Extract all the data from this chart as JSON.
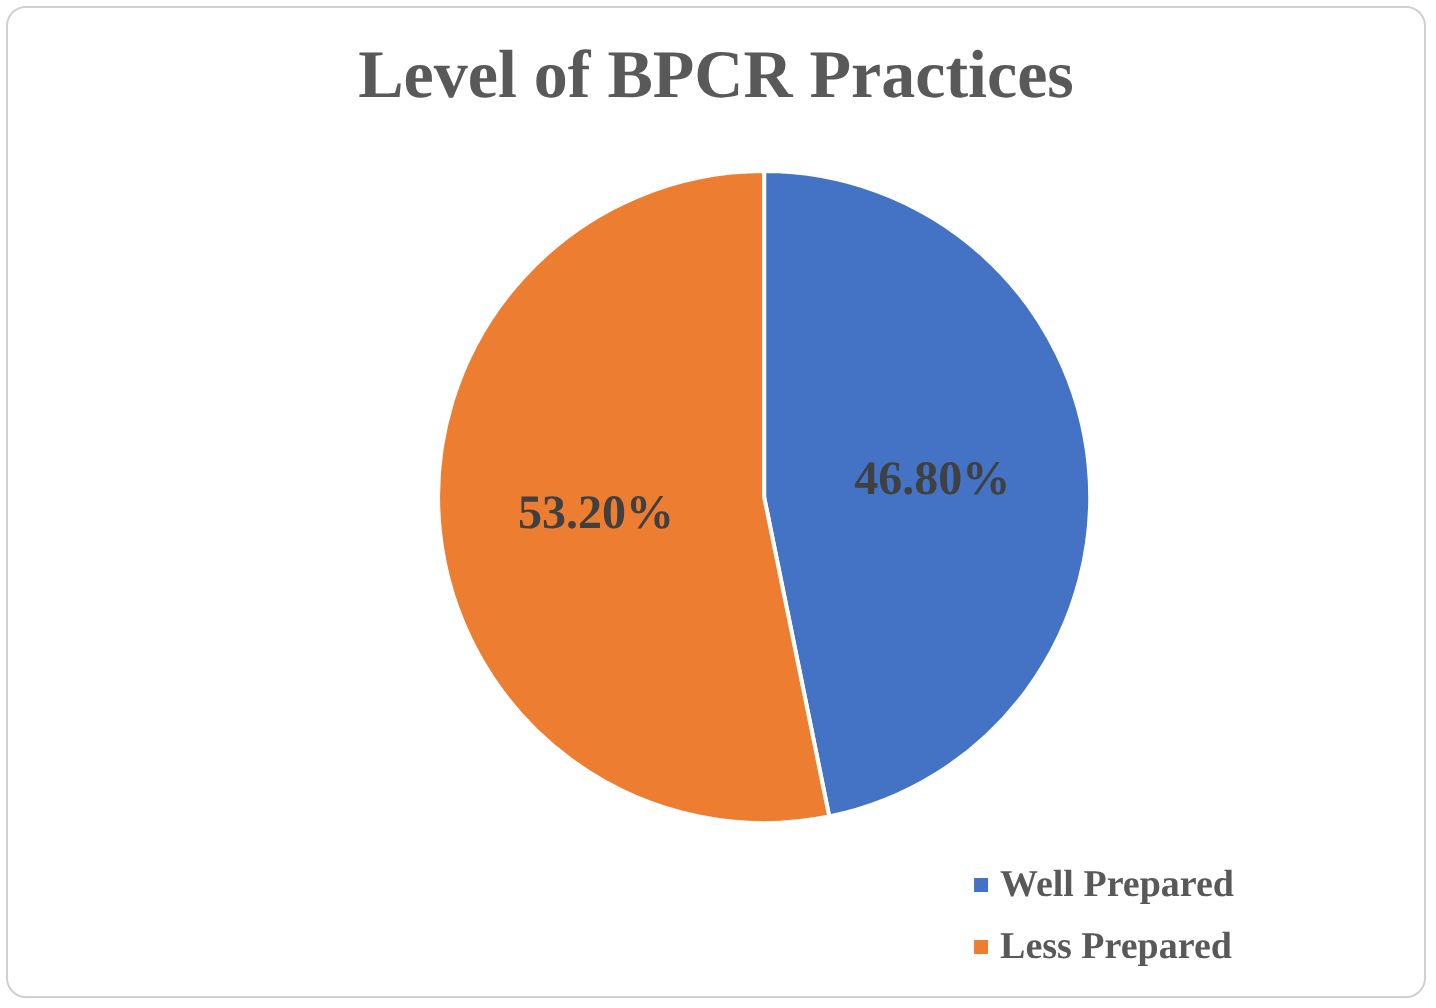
{
  "chart_data": {
    "type": "pie",
    "title": "Level of BPCR Practices",
    "categories": [
      "Well Prepared",
      "Less Prepared"
    ],
    "values": [
      46.8,
      53.2
    ],
    "colors": [
      "#4472c4",
      "#ed7d31"
    ],
    "value_labels": [
      "46.80%",
      "53.20%"
    ],
    "legend": "bottom right"
  }
}
